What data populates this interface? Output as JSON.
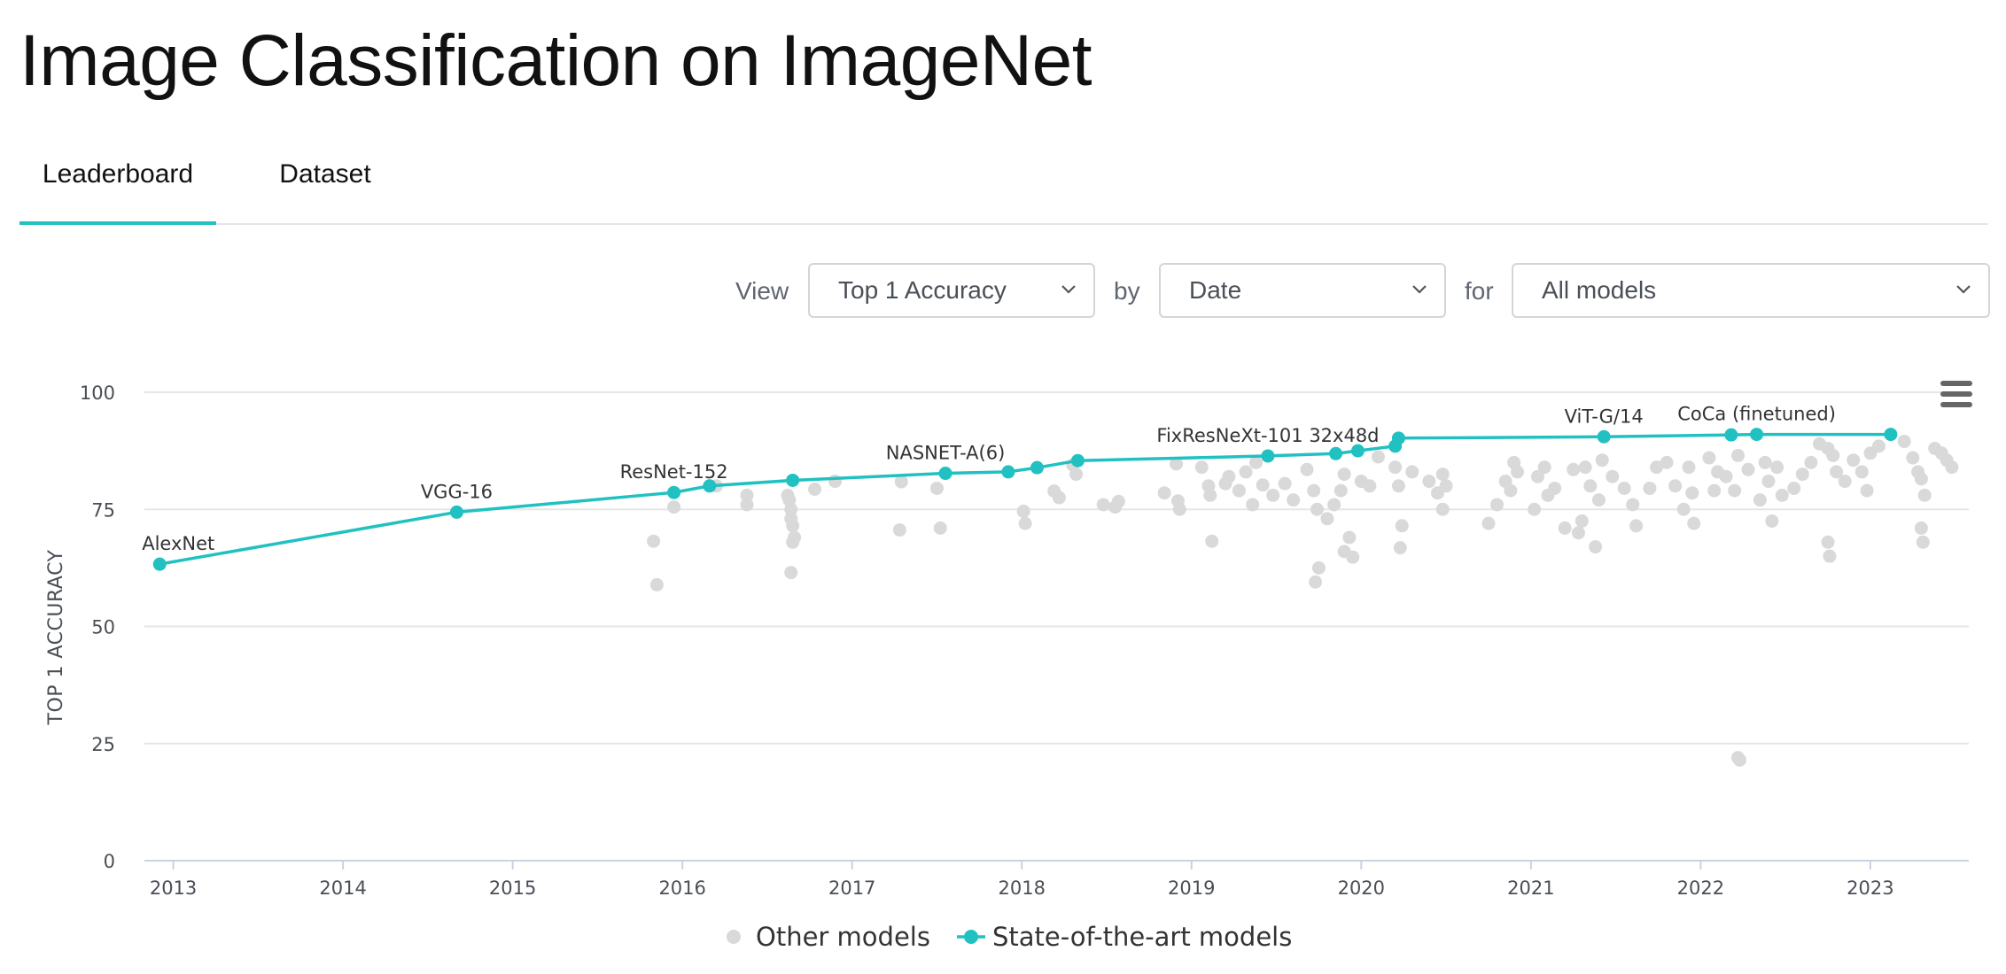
{
  "page": {
    "title": "Image Classification on ImageNet"
  },
  "tabs": [
    {
      "label": "Leaderboard",
      "active": true
    },
    {
      "label": "Dataset",
      "active": false
    }
  ],
  "controls": {
    "view_label": "View",
    "view_value": "Top 1 Accuracy",
    "by_label": "by",
    "by_value": "Date",
    "for_label": "for",
    "for_value": "All models"
  },
  "colors": {
    "sota": "#21c1c1",
    "other": "#d9d9d9",
    "grid": "#e6e6e6",
    "axis": "#c9d3e3",
    "accent": "#21c1c1"
  },
  "icons": {
    "menu": "hamburger-menu-icon",
    "dropdown": "chevron-down-icon"
  },
  "chart_data": {
    "type": "scatter",
    "title": "",
    "xlabel": "",
    "ylabel": "TOP 1 ACCURACY",
    "xlim": [
      2012.83,
      2023.58
    ],
    "ylim": [
      0,
      100
    ],
    "x_ticks": [
      "2013",
      "2014",
      "2015",
      "2016",
      "2017",
      "2018",
      "2019",
      "2020",
      "2021",
      "2022",
      "2023"
    ],
    "y_ticks": [
      "0",
      "25",
      "50",
      "75",
      "100"
    ],
    "grid": true,
    "legend": {
      "position": "bottom-center",
      "entries": [
        "Other models",
        "State-of-the-art models"
      ]
    },
    "series": [
      {
        "name": "State-of-the-art models",
        "kind": "line+marker",
        "x": [
          2012.92,
          2014.67,
          2015.95,
          2016.16,
          2016.65,
          2017.55,
          2017.92,
          2018.09,
          2018.33,
          2019.45,
          2019.85,
          2019.98,
          2020.2,
          2020.22,
          2021.43,
          2022.18,
          2022.33,
          2023.12
        ],
        "y": [
          63.3,
          74.4,
          78.6,
          80.0,
          81.2,
          82.7,
          83.0,
          83.9,
          85.4,
          86.4,
          86.9,
          87.5,
          88.5,
          90.2,
          90.5,
          90.9,
          91.0,
          91.0
        ]
      },
      {
        "name": "Other models",
        "kind": "marker",
        "x": [
          2015.83,
          2015.85,
          2015.95,
          2016.2,
          2016.38,
          2016.38,
          2016.62,
          2016.63,
          2016.64,
          2016.64,
          2016.65,
          2016.66,
          2016.65,
          2016.64,
          2016.78,
          2016.9,
          2017.29,
          2017.28,
          2017.5,
          2017.52,
          2018.01,
          2018.02,
          2018.19,
          2018.22,
          2018.32,
          2018.3,
          2018.48,
          2018.55,
          2018.57,
          2018.84,
          2018.91,
          2018.93,
          2018.92,
          2019.06,
          2019.1,
          2019.11,
          2019.12,
          2019.2,
          2019.22,
          2019.28,
          2019.32,
          2019.36,
          2019.38,
          2019.42,
          2019.48,
          2019.55,
          2019.6,
          2019.68,
          2019.72,
          2019.74,
          2019.75,
          2019.73,
          2019.8,
          2019.84,
          2019.88,
          2019.9,
          2019.9,
          2019.93,
          2019.95,
          2020.0,
          2020.05,
          2020.1,
          2020.2,
          2020.22,
          2020.24,
          2020.23,
          2020.3,
          2020.4,
          2020.45,
          2020.48,
          2020.5,
          2020.48,
          2020.75,
          2020.8,
          2020.85,
          2020.88,
          2020.9,
          2020.92,
          2021.02,
          2021.04,
          2021.08,
          2021.1,
          2021.14,
          2021.2,
          2021.25,
          2021.3,
          2021.32,
          2021.28,
          2021.35,
          2021.38,
          2021.4,
          2021.42,
          2021.48,
          2021.55,
          2021.6,
          2021.62,
          2021.7,
          2021.74,
          2021.8,
          2021.85,
          2021.9,
          2021.93,
          2021.95,
          2021.96,
          2022.05,
          2022.08,
          2022.1,
          2022.15,
          2022.2,
          2022.22,
          2022.28,
          2022.35,
          2022.38,
          2022.4,
          2022.42,
          2022.45,
          2022.48,
          2022.55,
          2022.6,
          2022.65,
          2022.7,
          2022.75,
          2022.78,
          2022.8,
          2022.85,
          2022.9,
          2022.95,
          2022.98,
          2023.0,
          2023.05,
          2023.2,
          2023.25,
          2023.28,
          2023.3,
          2023.32,
          2023.38,
          2023.42,
          2023.45,
          2023.48,
          2022.75,
          2022.76,
          2023.3,
          2023.31,
          2022.22,
          2022.23
        ],
        "y": [
          68.2,
          58.9,
          75.5,
          80.0,
          78.0,
          76.0,
          78.0,
          77.0,
          75.0,
          73.0,
          71.5,
          69.0,
          68.0,
          61.5,
          79.3,
          81.0,
          80.9,
          70.6,
          79.5,
          71.0,
          74.6,
          72.0,
          78.9,
          77.5,
          82.5,
          84.5,
          76.0,
          75.5,
          76.7,
          78.5,
          84.7,
          75.0,
          76.8,
          84.0,
          80.0,
          78.0,
          68.2,
          80.5,
          82.0,
          79.0,
          83.0,
          76.0,
          85.0,
          80.2,
          78.0,
          80.5,
          77.0,
          83.5,
          79.0,
          75.0,
          62.5,
          59.5,
          73.0,
          76.0,
          79.0,
          66.0,
          82.5,
          69.0,
          64.8,
          81.0,
          80.0,
          86.2,
          84.0,
          80.0,
          71.5,
          66.8,
          83.0,
          81.0,
          78.5,
          82.5,
          80.0,
          75.0,
          72.0,
          76.0,
          81.0,
          79.0,
          85.0,
          83.0,
          75.0,
          82.0,
          84.0,
          78.0,
          79.5,
          71.0,
          83.5,
          72.5,
          84.0,
          70.0,
          80.0,
          67.0,
          77.0,
          85.5,
          82.0,
          79.5,
          76.0,
          71.5,
          79.5,
          84.0,
          85.0,
          80.0,
          75.0,
          84.0,
          78.5,
          72.0,
          86.0,
          79.0,
          83.0,
          82.0,
          79.0,
          86.5,
          83.5,
          77.0,
          85.0,
          81.0,
          72.5,
          84.0,
          78.0,
          79.5,
          82.5,
          85.0,
          89.0,
          88.0,
          86.5,
          83.0,
          81.0,
          85.5,
          83.0,
          79.0,
          87.0,
          88.5,
          89.5,
          86.0,
          83.0,
          81.5,
          78.0,
          88.0,
          87.0,
          85.5,
          84.0,
          68.0,
          65.0,
          71.0,
          68.0,
          22.0,
          21.5
        ]
      }
    ],
    "annotations": [
      {
        "text": "AlexNet",
        "x": 2012.92,
        "y": 63.3
      },
      {
        "text": "VGG-16",
        "x": 2014.67,
        "y": 74.4
      },
      {
        "text": "ResNet-152",
        "x": 2015.95,
        "y": 78.6
      },
      {
        "text": "NASNET-A(6)",
        "x": 2017.55,
        "y": 82.7
      },
      {
        "text": "FixResNeXt-101 32x48d",
        "x": 2019.45,
        "y": 86.4
      },
      {
        "text": "ViT-G/14",
        "x": 2021.43,
        "y": 90.5
      },
      {
        "text": "CoCa (finetuned)",
        "x": 2022.33,
        "y": 91.0
      }
    ]
  }
}
